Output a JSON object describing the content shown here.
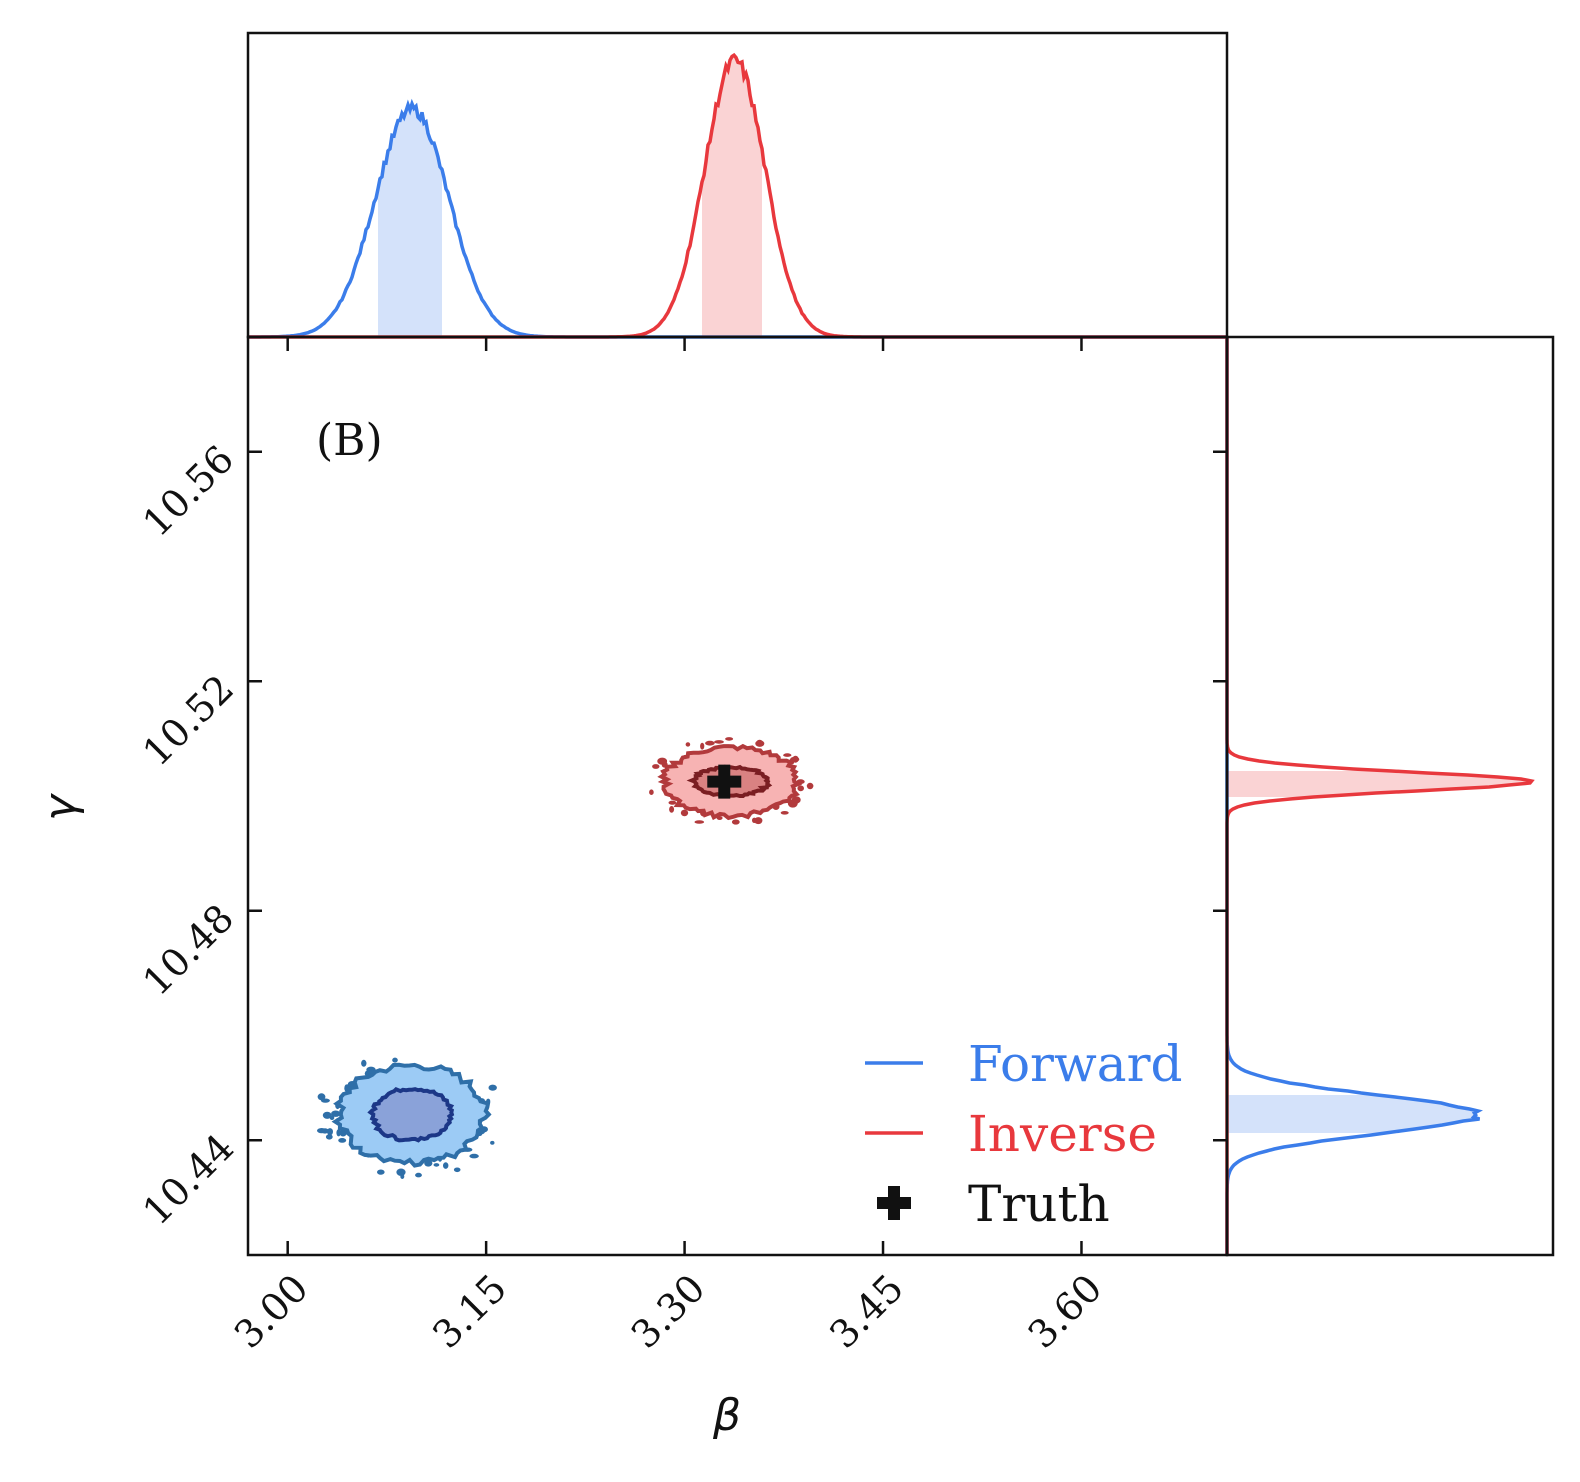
{
  "chart_data": {
    "type": "scatter",
    "subtype": "corner-plot",
    "panel_label": "(B)",
    "xlabel": "β",
    "ylabel": "γ",
    "xlim": [
      2.97,
      3.71
    ],
    "ylim": [
      10.42,
      10.58
    ],
    "xticks": [
      3.0,
      3.15,
      3.3,
      3.45,
      3.6
    ],
    "xtick_labels": [
      "3.00",
      "3.15",
      "3.30",
      "3.45",
      "3.60"
    ],
    "yticks": [
      10.44,
      10.48,
      10.52,
      10.56
    ],
    "ytick_labels": [
      "10.44",
      "10.48",
      "10.52",
      "10.56"
    ],
    "legend": {
      "location": "lower-right",
      "entries": [
        {
          "label": "Forward",
          "color": "#3b7dea",
          "marker": "line"
        },
        {
          "label": "Inverse",
          "color": "#e8383d",
          "marker": "line"
        },
        {
          "label": "Truth",
          "color": "#111111",
          "marker": "plus"
        }
      ]
    },
    "truth": {
      "x": 3.33,
      "y": 10.5025
    },
    "series": [
      {
        "name": "Forward",
        "color": "#3b7dea",
        "contour_colors": [
          "#9ccbf5",
          "#2f6fa8",
          "#8aa2d9",
          "#1c3787"
        ],
        "center": {
          "x": 3.094,
          "y": 10.4445
        },
        "spread_68": {
          "x": 0.03,
          "y": 0.0045
        },
        "spread_95": {
          "x": 0.055,
          "y": 0.0085
        },
        "marginal_beta": {
          "mean": 3.094,
          "sd": 0.028,
          "peak": 0.75,
          "band": [
            3.067,
            3.118
          ]
        },
        "marginal_gamma": {
          "mean": 10.4445,
          "sd": 0.0033,
          "peak": 0.78,
          "band": [
            10.441,
            10.448
          ]
        }
      },
      {
        "name": "Inverse",
        "color": "#e8383d",
        "contour_colors": [
          "#f7b3b3",
          "#b23a3c",
          "#d98282",
          "#7a1e22"
        ],
        "center": {
          "x": 3.335,
          "y": 10.5025
        },
        "spread_68": {
          "x": 0.028,
          "y": 0.0025
        },
        "spread_95": {
          "x": 0.05,
          "y": 0.006
        },
        "marginal_beta": {
          "mean": 3.338,
          "sd": 0.023,
          "peak": 0.91,
          "band": [
            3.313,
            3.36
          ]
        },
        "marginal_gamma": {
          "mean": 10.5025,
          "sd": 0.0017,
          "peak": 0.92,
          "band": [
            10.4997,
            10.5047
          ]
        }
      }
    ]
  }
}
